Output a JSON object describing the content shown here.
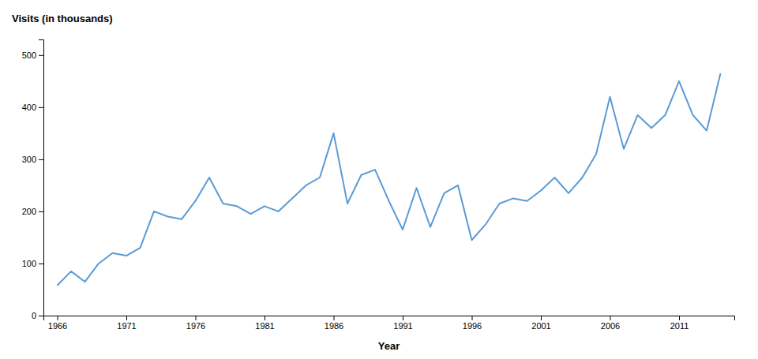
{
  "chart_data": {
    "type": "line",
    "xlabel": "Year",
    "ylabel": "Visits (in thousands)",
    "x": [
      1966,
      1967,
      1968,
      1969,
      1970,
      1971,
      1972,
      1973,
      1974,
      1975,
      1976,
      1977,
      1978,
      1979,
      1980,
      1981,
      1982,
      1983,
      1984,
      1985,
      1986,
      1987,
      1988,
      1989,
      1990,
      1991,
      1992,
      1993,
      1994,
      1995,
      1996,
      1997,
      1998,
      1999,
      2000,
      2001,
      2002,
      2003,
      2004,
      2005,
      2006,
      2007,
      2008,
      2009,
      2010,
      2011,
      2012,
      2013,
      2014
    ],
    "values": [
      58,
      85,
      65,
      100,
      120,
      115,
      130,
      200,
      190,
      185,
      220,
      265,
      215,
      210,
      195,
      210,
      200,
      225,
      250,
      265,
      350,
      215,
      270,
      280,
      220,
      165,
      245,
      170,
      235,
      250,
      145,
      175,
      215,
      225,
      220,
      240,
      265,
      235,
      265,
      310,
      420,
      320,
      385,
      360,
      385,
      450,
      385,
      355,
      465
    ],
    "color": "#5b9bd5",
    "xlim": [
      1965,
      2015
    ],
    "ylim": [
      0,
      530
    ],
    "xticks": [
      1966,
      1971,
      1976,
      1981,
      1986,
      1991,
      1996,
      2001,
      2006,
      2011
    ],
    "yticks": [
      0,
      100,
      200,
      300,
      400,
      500
    ],
    "grid": false
  }
}
